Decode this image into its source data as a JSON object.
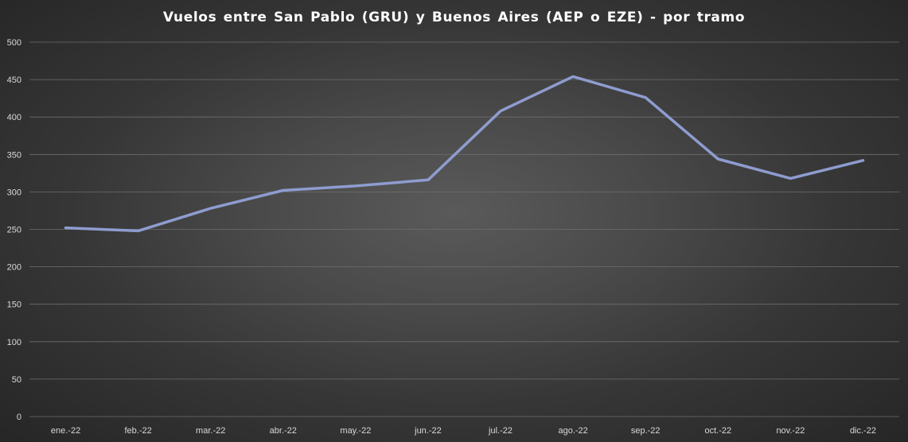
{
  "chart_data": {
    "type": "line",
    "title": "Vuelos entre San Pablo (GRU) y Buenos Aires (AEP o EZE) - por tramo",
    "xlabel": "",
    "ylabel": "",
    "categories": [
      "ene.-22",
      "feb.-22",
      "mar.-22",
      "abr.-22",
      "may.-22",
      "jun.-22",
      "jul.-22",
      "ago.-22",
      "sep.-22",
      "oct.-22",
      "nov.-22",
      "dic.-22"
    ],
    "series": [
      {
        "values": [
          252,
          248,
          278,
          302,
          308,
          316,
          408,
          454,
          426,
          344,
          318,
          342
        ],
        "color": "#8e9ccf"
      }
    ],
    "ylim": [
      0,
      500
    ],
    "yticks": [
      0,
      50,
      100,
      150,
      200,
      250,
      300,
      350,
      400,
      450,
      500
    ],
    "grid": true,
    "legend": "none"
  },
  "colors": {
    "background": "#3c3c3c",
    "gridline": "#6e6e6e",
    "text": "#ffffff"
  }
}
